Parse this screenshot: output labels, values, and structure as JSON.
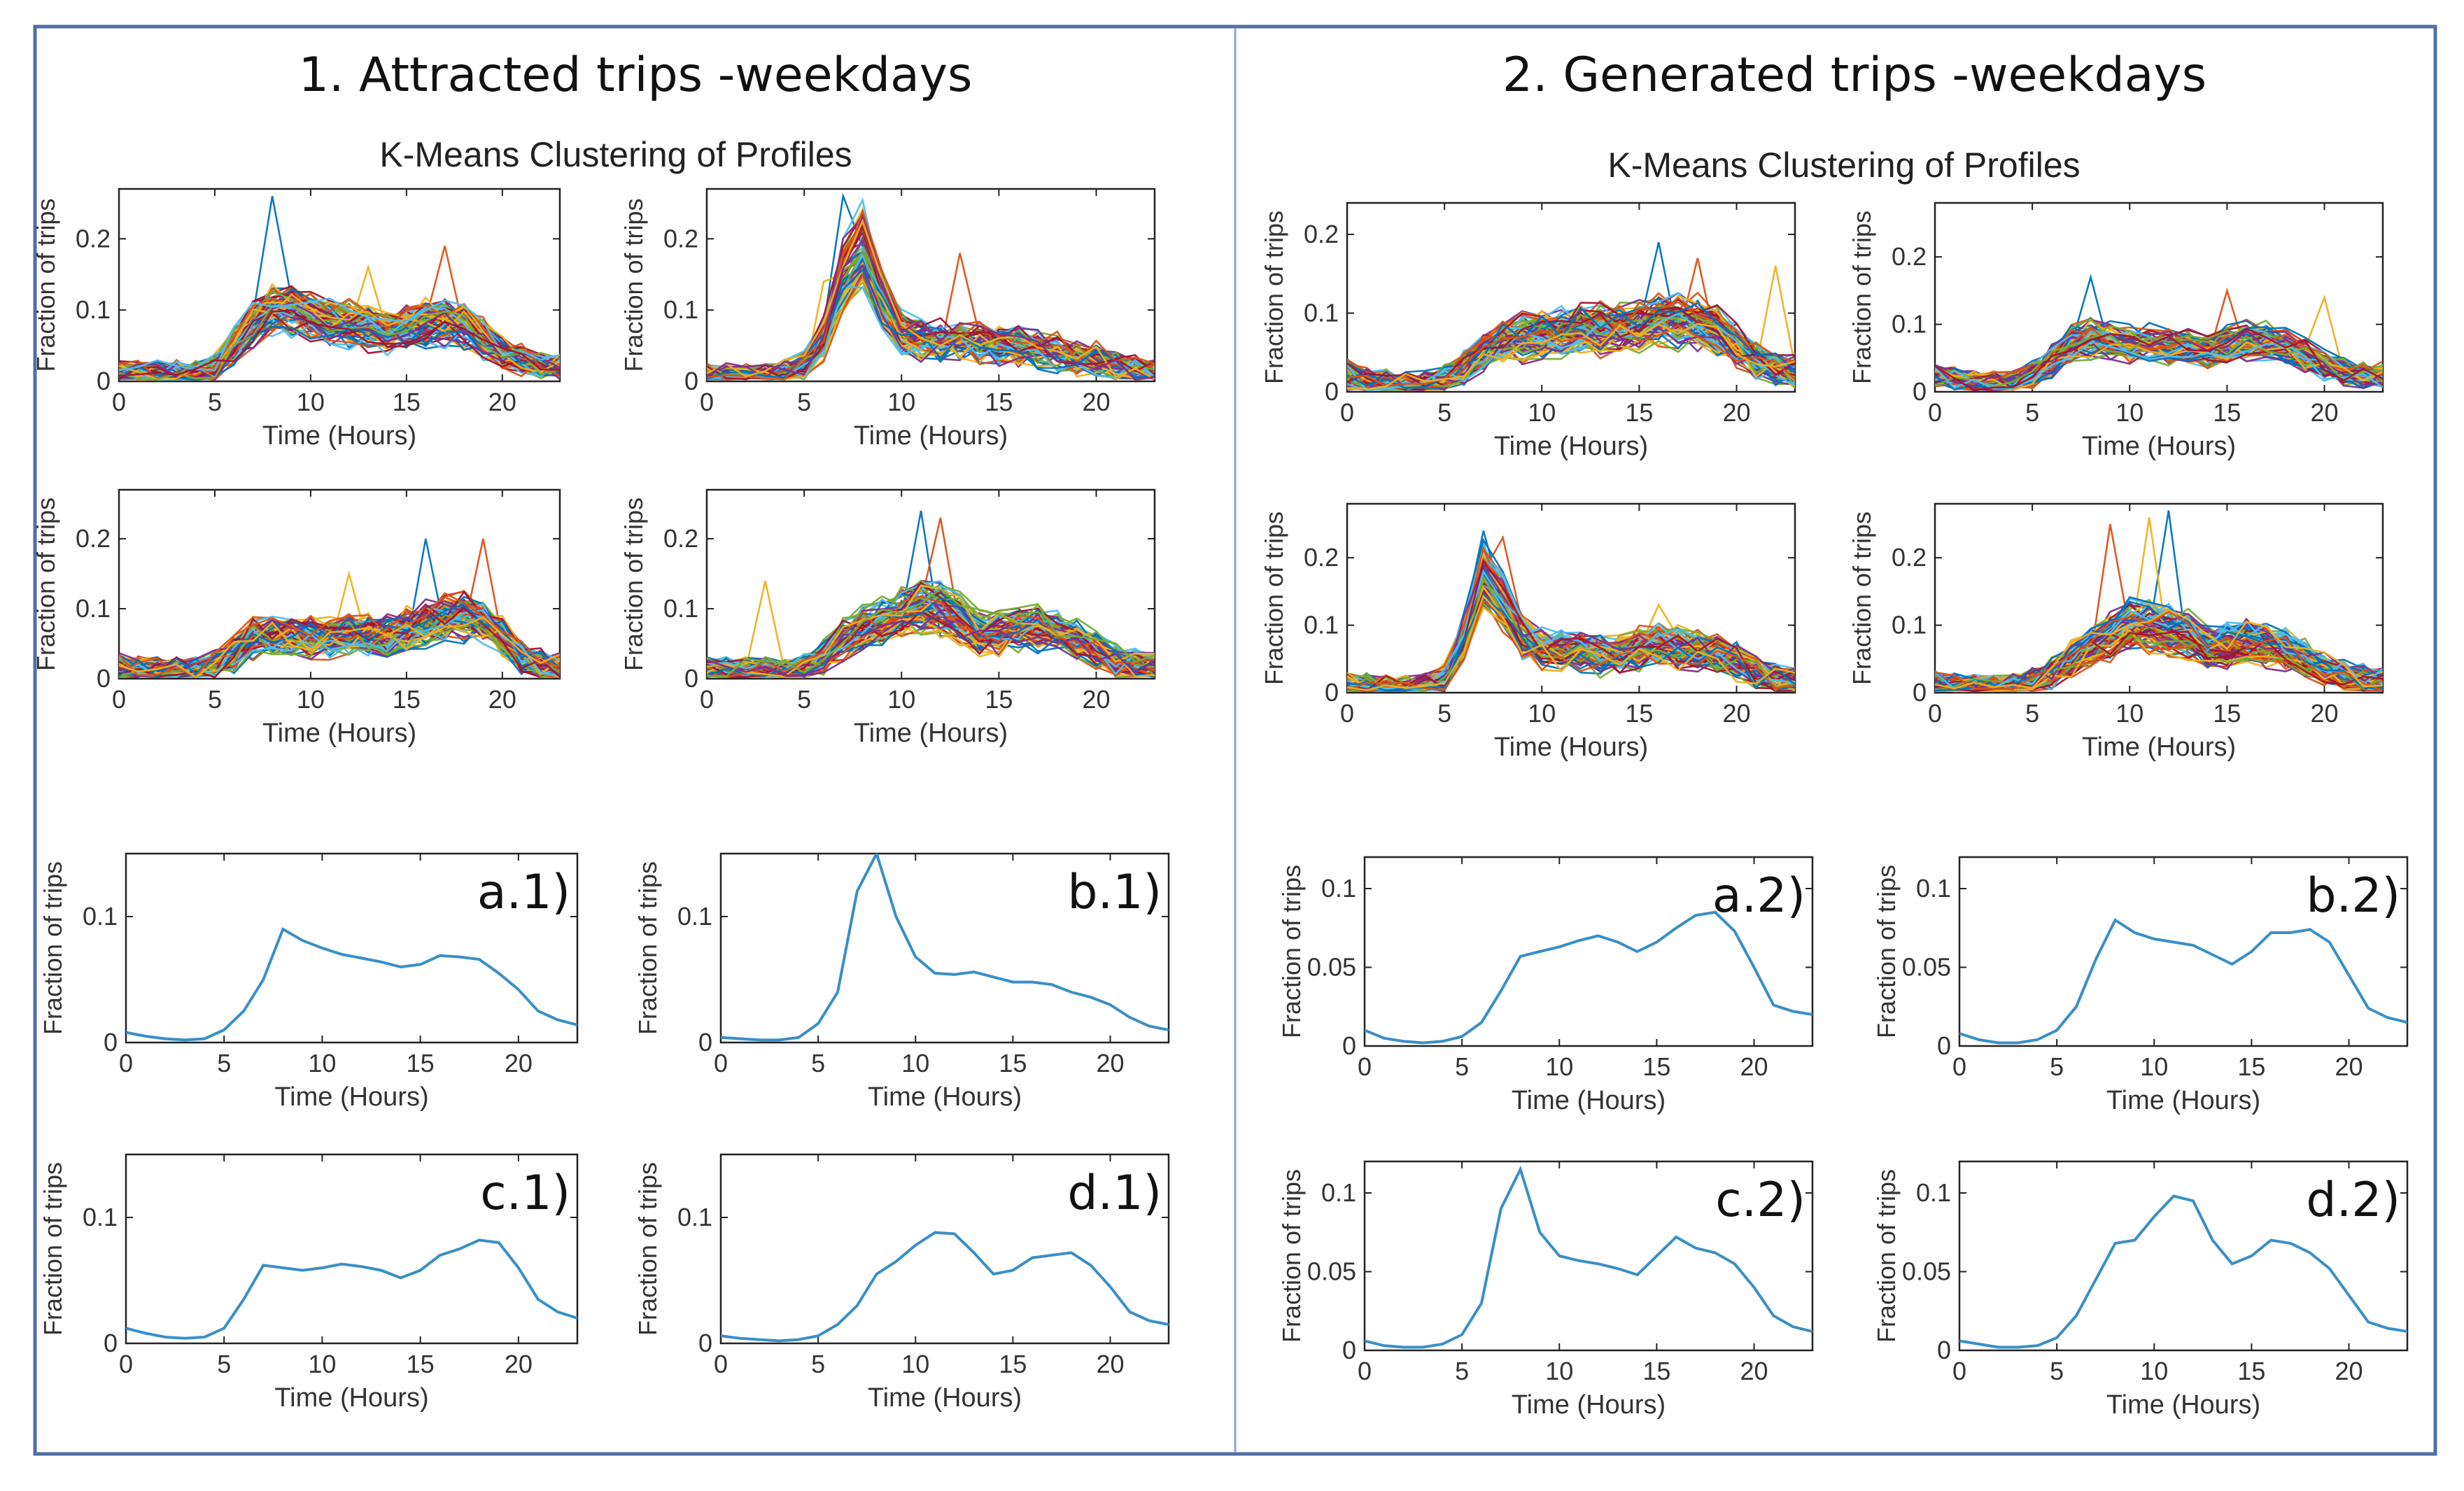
{
  "panels": [
    {
      "title": "1. Attracted trips -weekdays",
      "cluster_title": "K-Means Clustering of Profiles"
    },
    {
      "title": "2. Generated trips -weekdays",
      "cluster_title": "K-Means Clustering of Profiles"
    }
  ],
  "colors": {
    "frame_border": "#4f6fa3",
    "centroid_line": "#3a8fc6",
    "axis": "#222222",
    "palette": [
      "#0072bd",
      "#d95319",
      "#edb120",
      "#7e2f8e",
      "#77ac30",
      "#4dbeee",
      "#a2142f"
    ]
  },
  "chart_data": [
    {
      "type": "line",
      "panel": 1,
      "id": "k1-1",
      "title": "",
      "xlabel": "Time (Hours)",
      "ylabel": "Fraction of trips",
      "xlim": [
        0,
        23
      ],
      "ylim": [
        0,
        0.27
      ],
      "x_ticks": [
        0,
        5,
        10,
        15,
        20
      ],
      "y_ticks": [
        0,
        0.1,
        0.2
      ],
      "ensemble": {
        "base": [
          0.01,
          0.01,
          0.01,
          0.01,
          0.01,
          0.02,
          0.05,
          0.08,
          0.1,
          0.1,
          0.09,
          0.085,
          0.08,
          0.075,
          0.07,
          0.075,
          0.08,
          0.08,
          0.075,
          0.06,
          0.04,
          0.03,
          0.02,
          0.02
        ],
        "noise": 0.018,
        "count": 70,
        "spikes": [
          [
            8,
            0.26
          ],
          [
            17,
            0.19
          ],
          [
            13,
            0.16
          ]
        ]
      }
    },
    {
      "type": "line",
      "panel": 1,
      "id": "k1-2",
      "title": "",
      "xlabel": "Time (Hours)",
      "ylabel": "Fraction of trips",
      "xlim": [
        0,
        23
      ],
      "ylim": [
        0,
        0.27
      ],
      "x_ticks": [
        0,
        5,
        10,
        15,
        20
      ],
      "y_ticks": [
        0,
        0.1,
        0.2
      ],
      "ensemble": {
        "base": [
          0.005,
          0.005,
          0.005,
          0.005,
          0.01,
          0.02,
          0.06,
          0.15,
          0.19,
          0.12,
          0.07,
          0.06,
          0.06,
          0.055,
          0.055,
          0.05,
          0.05,
          0.045,
          0.04,
          0.035,
          0.03,
          0.02,
          0.015,
          0.01
        ],
        "noise": 0.02,
        "count": 60,
        "spikes": [
          [
            7,
            0.26
          ],
          [
            13,
            0.18
          ],
          [
            6,
            0.14
          ]
        ]
      }
    },
    {
      "type": "line",
      "panel": 1,
      "id": "k1-3",
      "title": "",
      "xlabel": "Time (Hours)",
      "ylabel": "Fraction of trips",
      "xlim": [
        0,
        23
      ],
      "ylim": [
        0,
        0.27
      ],
      "x_ticks": [
        0,
        5,
        10,
        15,
        20
      ],
      "y_ticks": [
        0,
        0.1,
        0.2
      ],
      "ensemble": {
        "base": [
          0.015,
          0.012,
          0.01,
          0.01,
          0.01,
          0.02,
          0.035,
          0.06,
          0.065,
          0.06,
          0.06,
          0.06,
          0.065,
          0.065,
          0.06,
          0.07,
          0.08,
          0.085,
          0.09,
          0.085,
          0.06,
          0.03,
          0.02,
          0.015
        ],
        "noise": 0.02,
        "count": 80,
        "spikes": [
          [
            16,
            0.2
          ],
          [
            19,
            0.2
          ],
          [
            12,
            0.15
          ]
        ]
      }
    },
    {
      "type": "line",
      "panel": 1,
      "id": "k1-4",
      "title": "",
      "xlabel": "Time (Hours)",
      "ylabel": "Fraction of trips",
      "xlim": [
        0,
        23
      ],
      "ylim": [
        0,
        0.27
      ],
      "x_ticks": [
        0,
        5,
        10,
        15,
        20
      ],
      "y_ticks": [
        0,
        0.1,
        0.2
      ],
      "ensemble": {
        "base": [
          0.01,
          0.01,
          0.01,
          0.01,
          0.01,
          0.015,
          0.03,
          0.055,
          0.07,
          0.08,
          0.09,
          0.1,
          0.1,
          0.085,
          0.065,
          0.065,
          0.07,
          0.07,
          0.065,
          0.055,
          0.04,
          0.025,
          0.02,
          0.015
        ],
        "noise": 0.02,
        "count": 75,
        "spikes": [
          [
            11,
            0.24
          ],
          [
            12,
            0.23
          ],
          [
            3,
            0.14
          ]
        ]
      }
    },
    {
      "type": "line",
      "panel": 2,
      "id": "k2-1",
      "title": "",
      "xlabel": "Time (Hours)",
      "ylabel": "Fraction of trips",
      "xlim": [
        0,
        23
      ],
      "ylim": [
        0,
        0.24
      ],
      "x_ticks": [
        0,
        5,
        10,
        15,
        20
      ],
      "y_ticks": [
        0,
        0.1,
        0.2
      ],
      "ensemble": {
        "base": [
          0.02,
          0.012,
          0.01,
          0.008,
          0.008,
          0.015,
          0.03,
          0.05,
          0.065,
          0.07,
          0.075,
          0.075,
          0.08,
          0.08,
          0.08,
          0.085,
          0.09,
          0.09,
          0.09,
          0.08,
          0.06,
          0.04,
          0.03,
          0.025
        ],
        "noise": 0.018,
        "count": 80,
        "spikes": [
          [
            16,
            0.19
          ],
          [
            18,
            0.17
          ],
          [
            22,
            0.16
          ]
        ]
      }
    },
    {
      "type": "line",
      "panel": 2,
      "id": "k2-2",
      "title": "",
      "xlabel": "Time (Hours)",
      "ylabel": "Fraction of trips",
      "xlim": [
        0,
        23
      ],
      "ylim": [
        0,
        0.28
      ],
      "x_ticks": [
        0,
        5,
        10,
        15,
        20
      ],
      "y_ticks": [
        0,
        0.1,
        0.2
      ],
      "ensemble": {
        "base": [
          0.025,
          0.02,
          0.015,
          0.015,
          0.015,
          0.025,
          0.045,
          0.07,
          0.08,
          0.075,
          0.07,
          0.07,
          0.07,
          0.065,
          0.06,
          0.07,
          0.075,
          0.075,
          0.07,
          0.055,
          0.04,
          0.03,
          0.025,
          0.025
        ],
        "noise": 0.016,
        "count": 70,
        "spikes": [
          [
            8,
            0.17
          ],
          [
            15,
            0.15
          ],
          [
            20,
            0.14
          ]
        ]
      }
    },
    {
      "type": "line",
      "panel": 2,
      "id": "k2-3",
      "title": "",
      "xlabel": "Time (Hours)",
      "ylabel": "Fraction of trips",
      "xlim": [
        0,
        23
      ],
      "ylim": [
        0,
        0.28
      ],
      "x_ticks": [
        0,
        5,
        10,
        15,
        20
      ],
      "y_ticks": [
        0,
        0.1,
        0.2
      ],
      "ensemble": {
        "base": [
          0.01,
          0.008,
          0.005,
          0.005,
          0.008,
          0.02,
          0.08,
          0.17,
          0.13,
          0.08,
          0.065,
          0.06,
          0.06,
          0.055,
          0.055,
          0.065,
          0.07,
          0.065,
          0.06,
          0.055,
          0.045,
          0.03,
          0.02,
          0.015
        ],
        "noise": 0.02,
        "count": 80,
        "spikes": [
          [
            7,
            0.24
          ],
          [
            8,
            0.23
          ],
          [
            16,
            0.13
          ]
        ]
      }
    },
    {
      "type": "line",
      "panel": 2,
      "id": "k2-4",
      "title": "",
      "xlabel": "Time (Hours)",
      "ylabel": "Fraction of trips",
      "xlim": [
        0,
        23
      ],
      "ylim": [
        0,
        0.28
      ],
      "x_ticks": [
        0,
        5,
        10,
        15,
        20
      ],
      "y_ticks": [
        0,
        0.1,
        0.2
      ],
      "ensemble": {
        "base": [
          0.01,
          0.008,
          0.006,
          0.006,
          0.008,
          0.015,
          0.03,
          0.05,
          0.07,
          0.085,
          0.1,
          0.1,
          0.095,
          0.085,
          0.07,
          0.07,
          0.075,
          0.07,
          0.065,
          0.05,
          0.035,
          0.025,
          0.02,
          0.015
        ],
        "noise": 0.02,
        "count": 80,
        "spikes": [
          [
            12,
            0.27
          ],
          [
            9,
            0.25
          ],
          [
            11,
            0.26
          ]
        ]
      }
    },
    {
      "type": "line",
      "panel": 1,
      "id": "a1",
      "label": "a.1)",
      "xlabel": "Time (Hours)",
      "ylabel": "Fraction of  trips",
      "xlim": [
        0,
        23
      ],
      "ylim": [
        0,
        0.15
      ],
      "x_ticks": [
        0,
        5,
        10,
        15,
        20
      ],
      "y_ticks": [
        0,
        0.1
      ],
      "x": [
        0,
        1,
        2,
        3,
        4,
        5,
        6,
        7,
        8,
        9,
        10,
        11,
        12,
        13,
        14,
        15,
        16,
        17,
        18,
        19,
        20,
        21,
        22,
        23
      ],
      "y": [
        0.008,
        0.005,
        0.003,
        0.002,
        0.003,
        0.01,
        0.025,
        0.05,
        0.09,
        0.081,
        0.075,
        0.07,
        0.067,
        0.064,
        0.06,
        0.062,
        0.069,
        0.068,
        0.066,
        0.055,
        0.042,
        0.025,
        0.018,
        0.014
      ]
    },
    {
      "type": "line",
      "panel": 1,
      "id": "b1",
      "label": "b.1)",
      "xlabel": "Time (Hours)",
      "ylabel": "Fraction of  trips",
      "xlim": [
        0,
        23
      ],
      "ylim": [
        0,
        0.15
      ],
      "x_ticks": [
        0,
        5,
        10,
        15,
        20
      ],
      "y_ticks": [
        0,
        0.1
      ],
      "x": [
        0,
        1,
        2,
        3,
        4,
        5,
        6,
        7,
        8,
        9,
        10,
        11,
        12,
        13,
        14,
        15,
        16,
        17,
        18,
        19,
        20,
        21,
        22,
        23
      ],
      "y": [
        0.004,
        0.003,
        0.002,
        0.002,
        0.004,
        0.015,
        0.04,
        0.12,
        0.15,
        0.1,
        0.068,
        0.055,
        0.054,
        0.056,
        0.052,
        0.048,
        0.048,
        0.046,
        0.04,
        0.036,
        0.03,
        0.02,
        0.013,
        0.01
      ]
    },
    {
      "type": "line",
      "panel": 1,
      "id": "c1",
      "label": "c.1)",
      "xlabel": "Time (Hours)",
      "ylabel": "Fraction of  trips",
      "xlim": [
        0,
        23
      ],
      "ylim": [
        0,
        0.15
      ],
      "x_ticks": [
        0,
        5,
        10,
        15,
        20
      ],
      "y_ticks": [
        0,
        0.1
      ],
      "x": [
        0,
        1,
        2,
        3,
        4,
        5,
        6,
        7,
        8,
        9,
        10,
        11,
        12,
        13,
        14,
        15,
        16,
        17,
        18,
        19,
        20,
        21,
        22,
        23
      ],
      "y": [
        0.012,
        0.008,
        0.005,
        0.004,
        0.005,
        0.012,
        0.035,
        0.062,
        0.06,
        0.058,
        0.06,
        0.063,
        0.061,
        0.058,
        0.052,
        0.058,
        0.07,
        0.075,
        0.082,
        0.08,
        0.06,
        0.035,
        0.025,
        0.02
      ]
    },
    {
      "type": "line",
      "panel": 1,
      "id": "d1",
      "label": "d.1)",
      "xlabel": "Time (Hours)",
      "ylabel": "Fraction of  trips",
      "xlim": [
        0,
        23
      ],
      "ylim": [
        0,
        0.15
      ],
      "x_ticks": [
        0,
        5,
        10,
        15,
        20
      ],
      "y_ticks": [
        0,
        0.1
      ],
      "x": [
        0,
        1,
        2,
        3,
        4,
        5,
        6,
        7,
        8,
        9,
        10,
        11,
        12,
        13,
        14,
        15,
        16,
        17,
        18,
        19,
        20,
        21,
        22,
        23
      ],
      "y": [
        0.006,
        0.004,
        0.003,
        0.002,
        0.003,
        0.006,
        0.015,
        0.03,
        0.055,
        0.065,
        0.078,
        0.088,
        0.087,
        0.072,
        0.055,
        0.058,
        0.068,
        0.07,
        0.072,
        0.062,
        0.045,
        0.025,
        0.018,
        0.015
      ]
    },
    {
      "type": "line",
      "panel": 2,
      "id": "a2",
      "label": "a.2)",
      "xlabel": "Time (Hours)",
      "ylabel": "Fraction of trips",
      "xlim": [
        0,
        23
      ],
      "ylim": [
        0,
        0.12
      ],
      "x_ticks": [
        0,
        5,
        10,
        15,
        20
      ],
      "y_ticks": [
        0,
        0.05,
        0.1
      ],
      "x": [
        0,
        1,
        2,
        3,
        4,
        5,
        6,
        7,
        8,
        9,
        10,
        11,
        12,
        13,
        14,
        15,
        16,
        17,
        18,
        19,
        20,
        21,
        22,
        23
      ],
      "y": [
        0.01,
        0.005,
        0.003,
        0.002,
        0.003,
        0.006,
        0.015,
        0.035,
        0.057,
        0.06,
        0.063,
        0.067,
        0.07,
        0.066,
        0.06,
        0.066,
        0.075,
        0.083,
        0.085,
        0.073,
        0.05,
        0.026,
        0.022,
        0.02
      ]
    },
    {
      "type": "line",
      "panel": 2,
      "id": "b2",
      "label": "b.2)",
      "xlabel": "Time (Hours)",
      "ylabel": "Fraction of trips",
      "xlim": [
        0,
        23
      ],
      "ylim": [
        0,
        0.12
      ],
      "x_ticks": [
        0,
        5,
        10,
        15,
        20
      ],
      "y_ticks": [
        0,
        0.05,
        0.1
      ],
      "x": [
        0,
        1,
        2,
        3,
        4,
        5,
        6,
        7,
        8,
        9,
        10,
        11,
        12,
        13,
        14,
        15,
        16,
        17,
        18,
        19,
        20,
        21,
        22,
        23
      ],
      "y": [
        0.008,
        0.004,
        0.002,
        0.002,
        0.004,
        0.01,
        0.025,
        0.055,
        0.08,
        0.072,
        0.068,
        0.066,
        0.064,
        0.058,
        0.052,
        0.06,
        0.072,
        0.072,
        0.074,
        0.066,
        0.045,
        0.024,
        0.018,
        0.015
      ]
    },
    {
      "type": "line",
      "panel": 2,
      "id": "c2",
      "label": "c.2)",
      "xlabel": "Time (Hours)",
      "ylabel": "Fraction of trips",
      "xlim": [
        0,
        23
      ],
      "ylim": [
        0,
        0.12
      ],
      "x_ticks": [
        0,
        5,
        10,
        15,
        20
      ],
      "y_ticks": [
        0,
        0.05,
        0.1
      ],
      "x": [
        0,
        1,
        2,
        3,
        4,
        5,
        6,
        7,
        8,
        9,
        10,
        11,
        12,
        13,
        14,
        15,
        16,
        17,
        18,
        19,
        20,
        21,
        22,
        23
      ],
      "y": [
        0.006,
        0.003,
        0.002,
        0.002,
        0.004,
        0.01,
        0.03,
        0.09,
        0.115,
        0.075,
        0.06,
        0.057,
        0.055,
        0.052,
        0.048,
        0.06,
        0.072,
        0.065,
        0.062,
        0.055,
        0.04,
        0.022,
        0.015,
        0.012
      ]
    },
    {
      "type": "line",
      "panel": 2,
      "id": "d2",
      "label": "d.2)",
      "xlabel": "Time (Hours)",
      "ylabel": "Fraction of trips",
      "xlim": [
        0,
        23
      ],
      "ylim": [
        0,
        0.12
      ],
      "x_ticks": [
        0,
        5,
        10,
        15,
        20
      ],
      "y_ticks": [
        0,
        0.05,
        0.1
      ],
      "x": [
        0,
        1,
        2,
        3,
        4,
        5,
        6,
        7,
        8,
        9,
        10,
        11,
        12,
        13,
        14,
        15,
        16,
        17,
        18,
        19,
        20,
        21,
        22,
        23
      ],
      "y": [
        0.006,
        0.004,
        0.002,
        0.002,
        0.003,
        0.008,
        0.022,
        0.045,
        0.068,
        0.07,
        0.085,
        0.098,
        0.095,
        0.07,
        0.055,
        0.06,
        0.07,
        0.068,
        0.062,
        0.052,
        0.035,
        0.018,
        0.014,
        0.012
      ]
    }
  ]
}
